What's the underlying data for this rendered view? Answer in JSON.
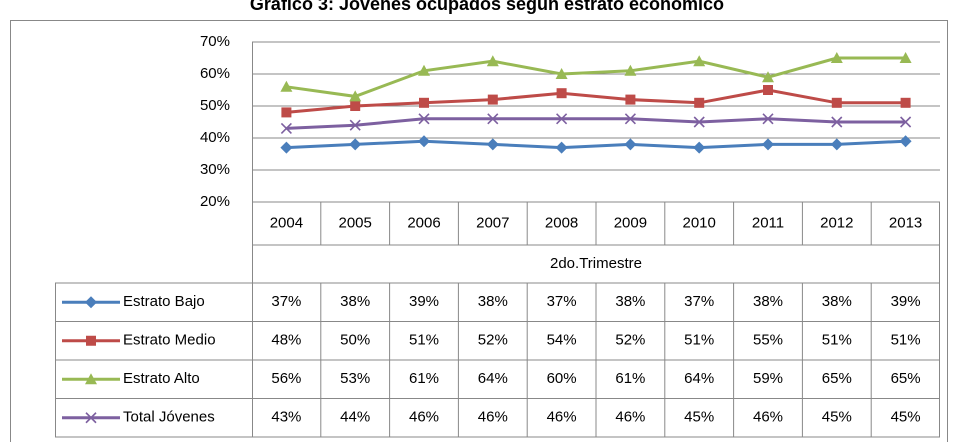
{
  "chart_data": {
    "type": "line",
    "title": "Gráfico 3: Jóvenes ocupados según estrato económico",
    "x_label": "2do.Trimestre",
    "categories": [
      "2004",
      "2005",
      "2006",
      "2007",
      "2008",
      "2009",
      "2010",
      "2011",
      "2012",
      "2013"
    ],
    "ylim": [
      20,
      70
    ],
    "yticks": [
      {
        "value": 20,
        "label": "20%"
      },
      {
        "value": 30,
        "label": "30%"
      },
      {
        "value": 40,
        "label": "40%"
      },
      {
        "value": 50,
        "label": "50%"
      },
      {
        "value": 60,
        "label": "60%"
      },
      {
        "value": 70,
        "label": "70%"
      }
    ],
    "grid": true,
    "series": [
      {
        "name": "Estrato Bajo",
        "color": "#4a7ebb",
        "marker": "diamond",
        "values": [
          37,
          38,
          39,
          38,
          37,
          38,
          37,
          38,
          38,
          39
        ],
        "value_labels": [
          "37%",
          "38%",
          "39%",
          "38%",
          "37%",
          "38%",
          "37%",
          "38%",
          "38%",
          "39%"
        ]
      },
      {
        "name": "Estrato Medio",
        "color": "#be4b48",
        "marker": "square",
        "values": [
          48,
          50,
          51,
          52,
          54,
          52,
          51,
          55,
          51,
          51
        ],
        "value_labels": [
          "48%",
          "50%",
          "51%",
          "52%",
          "54%",
          "52%",
          "51%",
          "55%",
          "51%",
          "51%"
        ]
      },
      {
        "name": "Estrato Alto",
        "color": "#98b954",
        "marker": "triangle",
        "values": [
          56,
          53,
          61,
          64,
          60,
          61,
          64,
          59,
          65,
          65
        ],
        "value_labels": [
          "56%",
          "53%",
          "61%",
          "64%",
          "60%",
          "61%",
          "64%",
          "59%",
          "65%",
          "65%"
        ]
      },
      {
        "name": "Total Jóvenes",
        "color": "#7d60a0",
        "marker": "x",
        "values": [
          43,
          44,
          46,
          46,
          46,
          46,
          45,
          46,
          45,
          45
        ],
        "value_labels": [
          "43%",
          "44%",
          "46%",
          "46%",
          "46%",
          "46%",
          "45%",
          "46%",
          "45%",
          "45%"
        ]
      }
    ]
  }
}
